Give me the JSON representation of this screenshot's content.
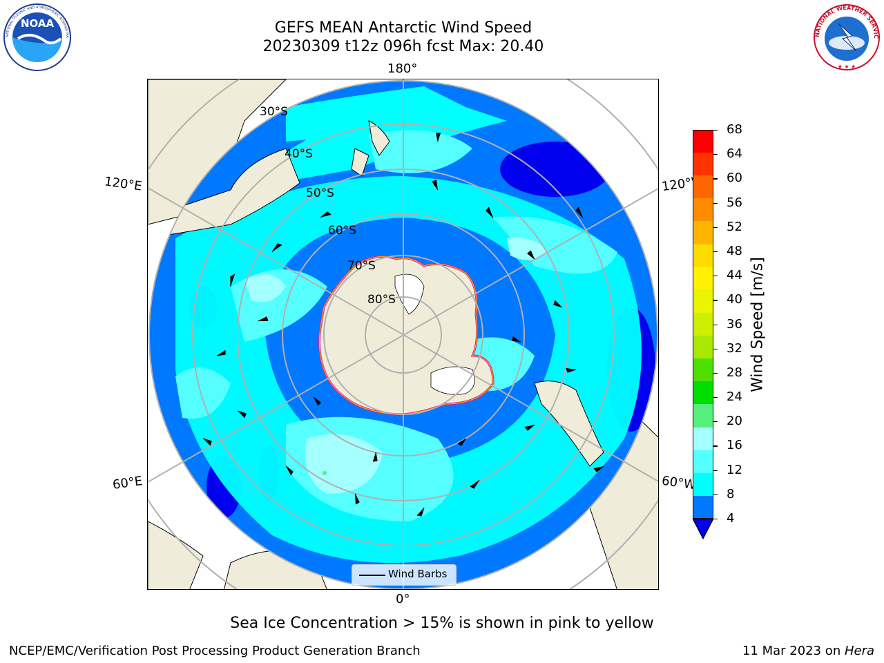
{
  "header": {
    "title_line1": "GEFS MEAN Antarctic Wind Speed",
    "title_line2": "20230309 t12z 096h fcst   Max: 20.40"
  },
  "logos": {
    "left": {
      "name": "NOAA",
      "ring_text": "NATIONAL OCEANIC AND ATMOSPHERIC ADMINISTRATION",
      "bottom_text": "U.S. DEPARTMENT OF COMMERCE"
    },
    "right": {
      "name": "National Weather Service",
      "ring_text": "NATIONAL WEATHER SERVICE"
    }
  },
  "map": {
    "projection": "south-polar-stereographic",
    "lon_labels": {
      "top": "180°",
      "bottom": "0°",
      "upper_left": "120°E",
      "upper_right": "120°W",
      "lower_left": "60°E",
      "lower_right": "60°W"
    },
    "lat_labels": [
      "30°S",
      "40°S",
      "50°S",
      "60°S",
      "70°S",
      "80°S"
    ],
    "legend_label": "Wind Barbs"
  },
  "colorbar": {
    "title": "Wind Speed [m/s]",
    "ticks": [
      "68",
      "64",
      "60",
      "56",
      "52",
      "48",
      "44",
      "40",
      "36",
      "32",
      "28",
      "24",
      "20",
      "16",
      "12",
      "8",
      "4"
    ],
    "colors": [
      "#ff0000",
      "#ff3300",
      "#ff6600",
      "#ff8c00",
      "#ffb400",
      "#ffdc00",
      "#fff200",
      "#e8f400",
      "#cdf000",
      "#a8e800",
      "#50e000",
      "#00dd00",
      "#55f07a",
      "#a4ffff",
      "#55ffff",
      "#00ffff",
      "#0078ff"
    ],
    "extend_color": "#0000ee"
  },
  "note": "Sea Ice Concentration > 15% is shown in pink to yellow",
  "footer": {
    "left": "NCEP/EMC/Verification Post Processing Product Generation Branch",
    "right_date": "11 Mar 2023 on ",
    "right_machine": "Hera"
  }
}
